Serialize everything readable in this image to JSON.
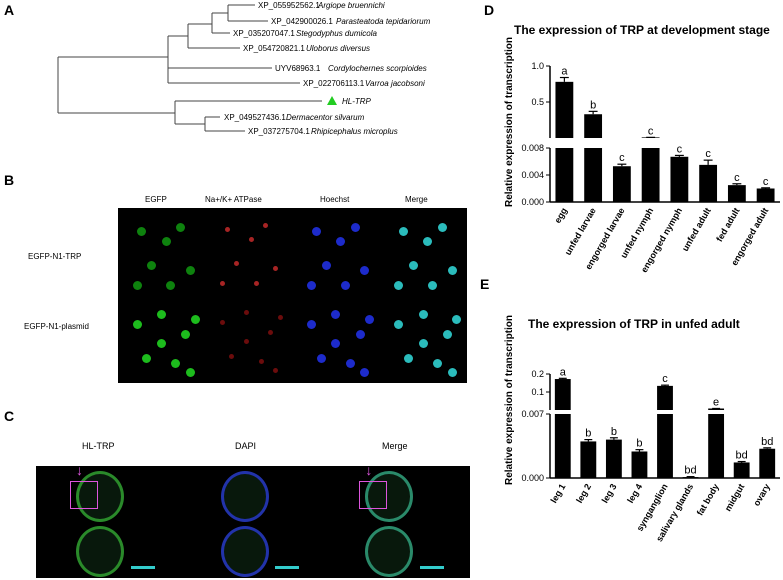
{
  "panels": {
    "A": "A",
    "B": "B",
    "C": "C",
    "D": "D",
    "E": "E"
  },
  "tree": {
    "taxa": [
      {
        "acc": "XP_055952562.1",
        "species": "Argiope bruennichi"
      },
      {
        "acc": "XP_042900026.1",
        "species": "Parasteatoda tepidariorum"
      },
      {
        "acc": "XP_035207047.1",
        "species": "Stegodyphus dumicola"
      },
      {
        "acc": "XP_054720821.1",
        "species": "Uloborus diversus"
      },
      {
        "acc": "UYV68963.1",
        "species": "Cordylochernes scorpioides"
      },
      {
        "acc": "XP_022706113.1",
        "species": "Varroa jacobsoni"
      },
      {
        "acc": "",
        "species": "HL-TRP"
      },
      {
        "acc": "XP_049527436.1",
        "species": "Dermacentor silvarum"
      },
      {
        "acc": "XP_037275704.1",
        "species": "Rhipicephalus microplus"
      }
    ],
    "highlight_color": "#22cc22"
  },
  "panel_b": {
    "columns": [
      "EGFP",
      "Na+/K+ ATPase",
      "Hoechst",
      "Merge"
    ],
    "rows": [
      "EGFP-N1-TRP",
      "EGFP-N1-plasmid"
    ]
  },
  "panel_c": {
    "columns": [
      "HL-TRP",
      "DAPI",
      "Merge"
    ]
  },
  "chart_data": [
    {
      "type": "bar",
      "title": "The expression of TRP at development stage",
      "ylabel": "Relative expression of  transcription",
      "categories": [
        "egg",
        "unfed larvae",
        "engorged larvae",
        "unfed nymph",
        "engorged nymph",
        "unfed adult",
        "fed adult",
        "engorged adult"
      ],
      "values": [
        0.78,
        0.33,
        0.0053,
        0.0085,
        0.0067,
        0.0055,
        0.0025,
        0.002
      ],
      "errors": [
        0.06,
        0.04,
        0.0003,
        0.0004,
        0.0002,
        0.0007,
        0.0002,
        0.0001
      ],
      "letters": [
        "a",
        "b",
        "c",
        "c",
        "c",
        "c",
        "c",
        "c"
      ],
      "broken_axis": true,
      "upper_ticks": [
        "1.0",
        "0.5"
      ],
      "upper_tick_values": [
        1.0,
        0.5
      ],
      "lower_ticks": [
        "0.008",
        "0.004",
        "0.000"
      ],
      "lower_tick_values": [
        0.008,
        0.004,
        0.0
      ],
      "lower_ylim": [
        0,
        0.008
      ],
      "upper_ylim": [
        0,
        1.0
      ]
    },
    {
      "type": "bar",
      "title": "The expression of TRP in unfed adult",
      "ylabel": "Relative expression of  transcription",
      "categories": [
        "leg 1",
        "leg 2",
        "leg 3",
        "leg 4",
        "synganglion",
        "salivary glands",
        "fat body",
        "midgut",
        "ovary"
      ],
      "values": [
        0.172,
        0.004,
        0.0042,
        0.0029,
        0.134,
        0.0001,
        0.0083,
        0.0017,
        0.0032
      ],
      "errors": [
        0.004,
        0.0002,
        0.0002,
        0.0002,
        0.004,
        5e-05,
        0.0003,
        0.0001,
        0.0001
      ],
      "letters": [
        "a",
        "b",
        "b",
        "b",
        "c",
        "bd",
        "e",
        "bd",
        "bd"
      ],
      "broken_axis": true,
      "upper_ticks": [
        "0.2",
        "0.1"
      ],
      "upper_tick_values": [
        0.2,
        0.1
      ],
      "lower_ticks": [
        "0.007",
        "0.000"
      ],
      "lower_tick_values": [
        0.007,
        0.0
      ],
      "lower_ylim": [
        0,
        0.007
      ],
      "upper_ylim": [
        0,
        0.2
      ]
    }
  ]
}
